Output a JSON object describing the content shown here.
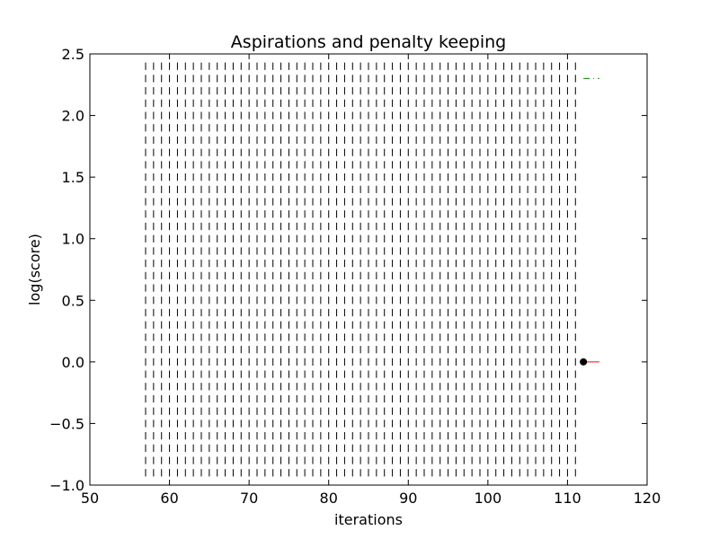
{
  "chart_data": {
    "type": "line",
    "title": "Aspirations and penalty keeping",
    "xlabel": "iterations",
    "ylabel": "log(score)",
    "xlim": [
      50,
      120
    ],
    "ylim": [
      -1.0,
      2.5
    ],
    "grid": false,
    "x_ticks": [
      50,
      60,
      70,
      80,
      90,
      100,
      110,
      120
    ],
    "x_tick_labels": [
      "50",
      "60",
      "70",
      "80",
      "90",
      "100",
      "110",
      "120"
    ],
    "y_ticks": [
      -1.0,
      -0.5,
      0.0,
      0.5,
      1.0,
      1.5,
      2.0,
      2.5
    ],
    "y_tick_labels": [
      "−1.0",
      "−0.5",
      "0.0",
      "0.5",
      "1.0",
      "1.5",
      "2.0",
      "2.5"
    ],
    "tick_marks": {
      "x_start": 57,
      "x_end": 111,
      "x_step": 1,
      "y_start": -0.9,
      "y_end": 2.4,
      "y_step": 0.1,
      "color": "#000000"
    },
    "series": [
      {
        "style": "solid",
        "color": "#ff0000",
        "x": [
          112,
          114
        ],
        "y": [
          0.0,
          0.0
        ]
      },
      {
        "style": "dashdot",
        "color": "#008000",
        "x": [
          112,
          114
        ],
        "y": [
          2.3,
          2.3
        ]
      },
      {
        "style": "solid",
        "color": "#000000",
        "x": [
          112,
          114
        ],
        "y": [
          -1.0,
          -1.0
        ]
      },
      {
        "style": "marker",
        "color": "#000000",
        "x": [
          112
        ],
        "y": [
          0.0
        ]
      }
    ]
  }
}
